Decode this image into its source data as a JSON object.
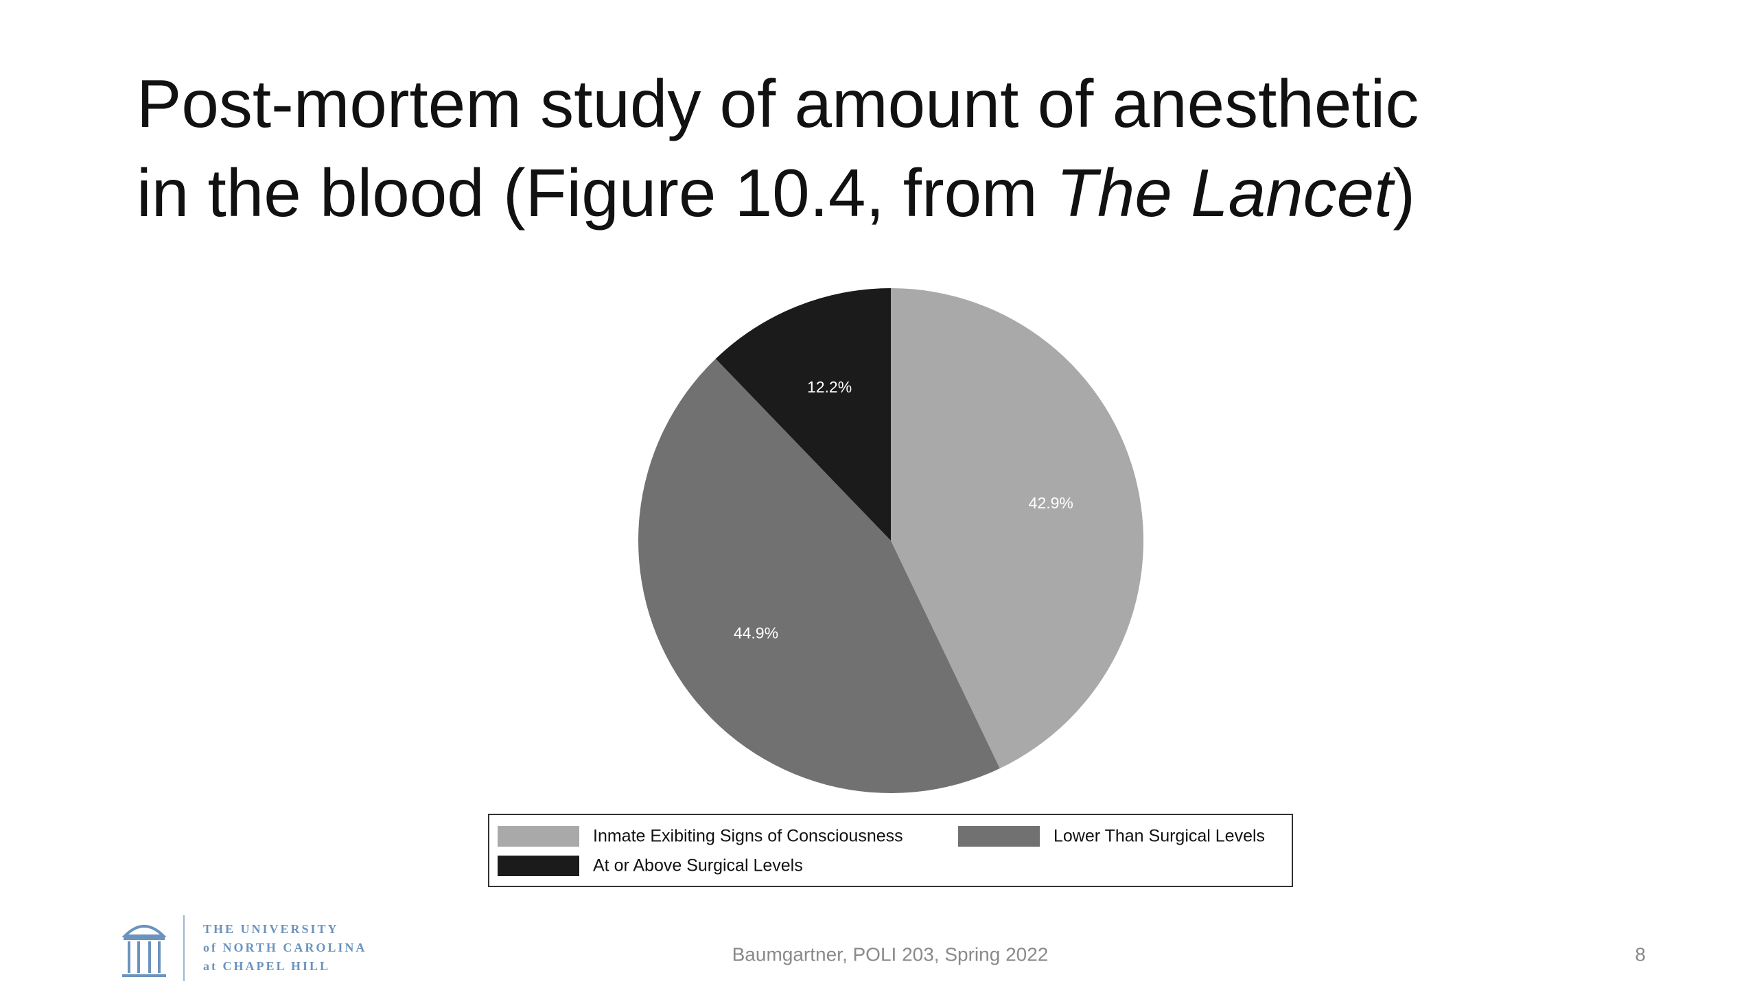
{
  "chart_data": {
    "type": "pie",
    "title": "Post-mortem study of amount of anesthetic in the blood (Figure 10.4, from ",
    "title_italic": "The Lancet",
    "title_end": ")",
    "categories": [
      "Inmate Exibiting Signs of Consciousness",
      "Lower Than Surgical Levels",
      "At or Above Surgical Levels"
    ],
    "values": [
      42.9,
      44.9,
      12.2
    ],
    "value_labels": [
      "42.9%",
      "44.9%",
      "12.2%"
    ],
    "colors": [
      "#a9a9a9",
      "#717171",
      "#1b1b1b"
    ],
    "legend": "bottom"
  },
  "footer": {
    "text": "Baumgartner, POLI 203, Spring 2022",
    "page": "8"
  },
  "logo": {
    "lines": [
      "THE UNIVERSITY",
      "of NORTH CAROLINA",
      "at CHAPEL HILL"
    ]
  }
}
